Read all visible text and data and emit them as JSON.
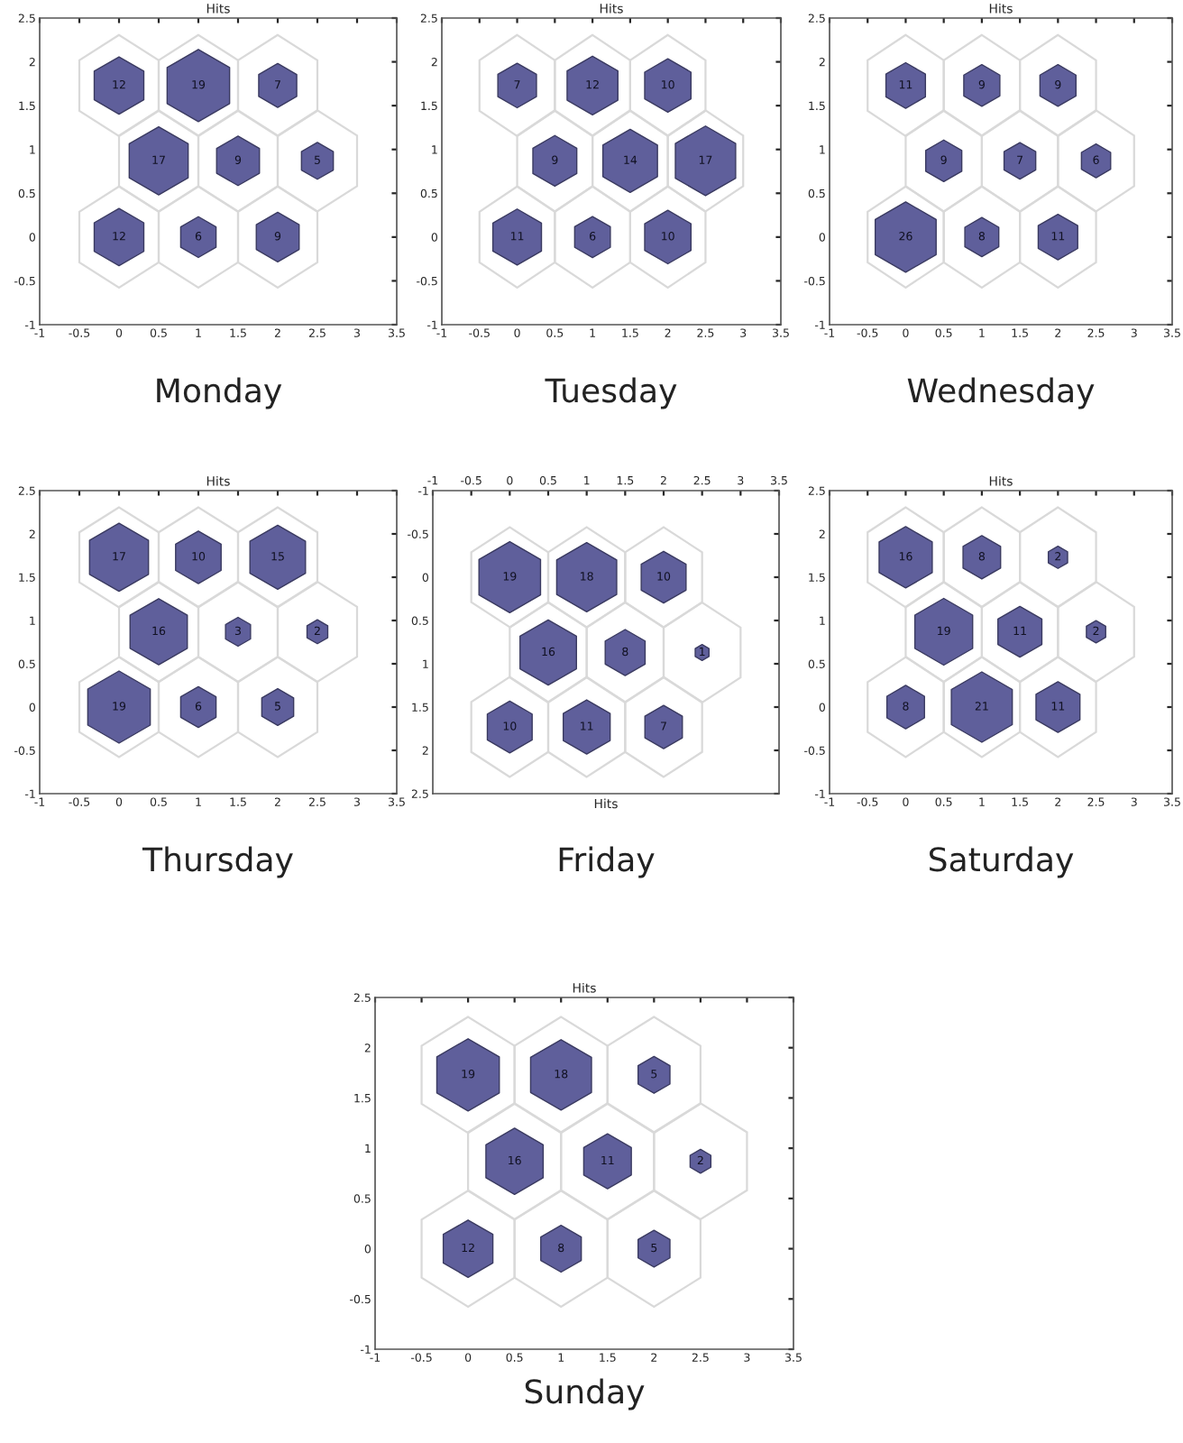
{
  "chart_data": [
    {
      "type": "bubble",
      "title": "Hits",
      "x": [
        0,
        1,
        2,
        0.5,
        1.5,
        2.5,
        0,
        1,
        2
      ],
      "values": [
        1.73,
        1.73,
        1.73,
        0.87,
        0.87,
        0.87,
        0,
        0,
        0
      ],
      "sizes": [
        0.63,
        1,
        0.37,
        0.89,
        0.47,
        0.26,
        0.63,
        0.32,
        0.47
      ],
      "color": "#5f5f9b",
      "xlim": [
        -1,
        3.5
      ],
      "ylim": [
        -1,
        2.5
      ],
      "xticks": [
        -1,
        -0.5,
        0,
        0.5,
        1,
        1.5,
        2,
        2.5,
        3,
        3.5
      ],
      "yticks": [
        -1,
        -0.5,
        0,
        0.5,
        1,
        1.5,
        2,
        2.5
      ],
      "annotations": [
        "Monday",
        {
          "text": "12",
          "x": 0,
          "y": 1.73
        },
        {
          "text": "19",
          "x": 1,
          "y": 1.73
        },
        {
          "text": "7",
          "x": 2,
          "y": 1.73
        },
        {
          "text": "17",
          "x": 0.5,
          "y": 0.87
        },
        {
          "text": "9",
          "x": 1.5,
          "y": 0.87
        },
        {
          "text": "5",
          "x": 2.5,
          "y": 0.87
        },
        {
          "text": "12",
          "x": 0,
          "y": 0
        },
        {
          "text": "6",
          "x": 1,
          "y": 0
        },
        {
          "text": "9",
          "x": 2,
          "y": 0
        }
      ]
    },
    {
      "type": "bubble",
      "title": "Hits",
      "x": [
        0,
        1,
        2,
        0.5,
        1.5,
        2.5,
        0,
        1,
        2
      ],
      "values": [
        1.73,
        1.73,
        1.73,
        0.87,
        0.87,
        0.87,
        0,
        0,
        0
      ],
      "sizes": [
        0.41,
        0.71,
        0.59,
        0.53,
        0.82,
        1,
        0.65,
        0.35,
        0.59
      ],
      "color": "#5f5f9b",
      "xlim": [
        -1,
        3.5
      ],
      "ylim": [
        -1,
        2.5
      ],
      "xticks": [
        -1,
        -0.5,
        0,
        0.5,
        1,
        1.5,
        2,
        2.5,
        3,
        3.5
      ],
      "yticks": [
        -1,
        -0.5,
        0,
        0.5,
        1,
        1.5,
        2,
        2.5
      ],
      "annotations": [
        "Tuesday",
        {
          "text": "7",
          "x": 0,
          "y": 1.73
        },
        {
          "text": "12",
          "x": 1,
          "y": 1.73
        },
        {
          "text": "10",
          "x": 2,
          "y": 1.73
        },
        {
          "text": "9",
          "x": 0.5,
          "y": 0.87
        },
        {
          "text": "14",
          "x": 1.5,
          "y": 0.87
        },
        {
          "text": "17",
          "x": 2.5,
          "y": 0.87
        },
        {
          "text": "11",
          "x": 0,
          "y": 0
        },
        {
          "text": "6",
          "x": 1,
          "y": 0
        },
        {
          "text": "10",
          "x": 2,
          "y": 0
        }
      ]
    },
    {
      "type": "bubble",
      "title": "Hits",
      "x": [
        0,
        1,
        2,
        0.5,
        1.5,
        2.5,
        0,
        1,
        2
      ],
      "values": [
        1.73,
        1.73,
        1.73,
        0.87,
        0.87,
        0.87,
        0,
        0,
        0
      ],
      "sizes": [
        0.42,
        0.35,
        0.35,
        0.35,
        0.27,
        0.23,
        1,
        0.31,
        0.42
      ],
      "color": "#5f5f9b",
      "xlim": [
        -1,
        3.5
      ],
      "ylim": [
        -1,
        2.5
      ],
      "xticks": [
        -1,
        -0.5,
        0,
        0.5,
        1,
        1.5,
        2,
        2.5,
        3,
        3.5
      ],
      "yticks": [
        -1,
        -0.5,
        0,
        0.5,
        1,
        1.5,
        2,
        2.5
      ],
      "annotations": [
        "Wednesday",
        {
          "text": "11",
          "x": 0,
          "y": 1.73
        },
        {
          "text": "9",
          "x": 1,
          "y": 1.73
        },
        {
          "text": "9",
          "x": 2,
          "y": 1.73
        },
        {
          "text": "9",
          "x": 0.5,
          "y": 0.87
        },
        {
          "text": "7",
          "x": 1.5,
          "y": 0.87
        },
        {
          "text": "6",
          "x": 2.5,
          "y": 0.87
        },
        {
          "text": "26",
          "x": 0,
          "y": 0
        },
        {
          "text": "8",
          "x": 1,
          "y": 0
        },
        {
          "text": "11",
          "x": 2,
          "y": 0
        }
      ]
    },
    {
      "type": "bubble",
      "title": "Hits",
      "x": [
        0,
        1,
        2,
        0.5,
        1.5,
        2.5,
        0,
        1,
        2
      ],
      "values": [
        1.73,
        1.73,
        1.73,
        0.87,
        0.87,
        0.87,
        0,
        0,
        0
      ],
      "sizes": [
        0.89,
        0.53,
        0.79,
        0.84,
        0.16,
        0.11,
        1,
        0.32,
        0.26
      ],
      "color": "#5f5f9b",
      "xlim": [
        -1,
        3.5
      ],
      "ylim": [
        -1,
        2.5
      ],
      "xticks": [
        -1,
        -0.5,
        0,
        0.5,
        1,
        1.5,
        2,
        2.5,
        3,
        3.5
      ],
      "yticks": [
        -1,
        -0.5,
        0,
        0.5,
        1,
        1.5,
        2,
        2.5
      ],
      "annotations": [
        "Thursday",
        {
          "text": "17",
          "x": 0,
          "y": 1.73
        },
        {
          "text": "10",
          "x": 1,
          "y": 1.73
        },
        {
          "text": "15",
          "x": 2,
          "y": 1.73
        },
        {
          "text": "16",
          "x": 0.5,
          "y": 0.87
        },
        {
          "text": "3",
          "x": 1.5,
          "y": 0.87
        },
        {
          "text": "2",
          "x": 2.5,
          "y": 0.87
        },
        {
          "text": "19",
          "x": 0,
          "y": 0
        },
        {
          "text": "6",
          "x": 1,
          "y": 0
        },
        {
          "text": "5",
          "x": 2,
          "y": 0
        }
      ]
    },
    {
      "type": "bubble",
      "xlabel": "Hits",
      "x": [
        0,
        1,
        2,
        0.5,
        1.5,
        2.5,
        0,
        1,
        2
      ],
      "values": [
        1.73,
        1.73,
        1.73,
        0.87,
        0.87,
        0.87,
        0,
        0,
        0
      ],
      "sizes": [
        0.53,
        0.58,
        0.37,
        0.84,
        0.42,
        0.05,
        1,
        0.95,
        0.53
      ],
      "color": "#5f5f9b",
      "xlim": [
        -1,
        3.5
      ],
      "ylim": [
        2.5,
        -1
      ],
      "xticks": [
        -1,
        -0.5,
        0,
        0.5,
        1,
        1.5,
        2,
        2.5,
        3,
        3.5
      ],
      "yticks": [
        -1,
        -0.5,
        0,
        0.5,
        1,
        1.5,
        2,
        2.5
      ],
      "annotations": [
        "Friday",
        {
          "text": "10",
          "x": 0,
          "y": 1.73
        },
        {
          "text": "11",
          "x": 1,
          "y": 1.73
        },
        {
          "text": "7",
          "x": 2,
          "y": 1.73
        },
        {
          "text": "16",
          "x": 0.5,
          "y": 0.87
        },
        {
          "text": "8",
          "x": 1.5,
          "y": 0.87
        },
        {
          "text": "1",
          "x": 2.5,
          "y": 0.87
        },
        {
          "text": "19",
          "x": 0,
          "y": 0
        },
        {
          "text": "18",
          "x": 1,
          "y": 0
        },
        {
          "text": "10",
          "x": 2,
          "y": 0
        }
      ]
    },
    {
      "type": "bubble",
      "title": "Hits",
      "x": [
        0,
        1,
        2,
        0.5,
        1.5,
        2.5,
        0,
        1,
        2
      ],
      "values": [
        1.73,
        1.73,
        1.73,
        0.87,
        0.87,
        0.87,
        0,
        0,
        0
      ],
      "sizes": [
        0.76,
        0.38,
        0.1,
        0.9,
        0.52,
        0.1,
        0.38,
        1,
        0.52
      ],
      "color": "#5f5f9b",
      "xlim": [
        -1,
        3.5
      ],
      "ylim": [
        -1,
        2.5
      ],
      "xticks": [
        -1,
        -0.5,
        0,
        0.5,
        1,
        1.5,
        2,
        2.5,
        3,
        3.5
      ],
      "yticks": [
        -1,
        -0.5,
        0,
        0.5,
        1,
        1.5,
        2,
        2.5
      ],
      "annotations": [
        "Saturday",
        {
          "text": "16",
          "x": 0,
          "y": 1.73
        },
        {
          "text": "8",
          "x": 1,
          "y": 1.73
        },
        {
          "text": "2",
          "x": 2,
          "y": 1.73
        },
        {
          "text": "19",
          "x": 0.5,
          "y": 0.87
        },
        {
          "text": "11",
          "x": 1.5,
          "y": 0.87
        },
        {
          "text": "2",
          "x": 2.5,
          "y": 0.87
        },
        {
          "text": "8",
          "x": 0,
          "y": 0
        },
        {
          "text": "21",
          "x": 1,
          "y": 0
        },
        {
          "text": "11",
          "x": 2,
          "y": 0
        }
      ]
    },
    {
      "type": "bubble",
      "title": "Hits",
      "x": [
        0,
        1,
        2,
        0.5,
        1.5,
        2.5,
        0,
        1,
        2
      ],
      "values": [
        1.73,
        1.73,
        1.73,
        0.87,
        0.87,
        0.87,
        0,
        0,
        0
      ],
      "sizes": [
        1,
        0.95,
        0.26,
        0.84,
        0.58,
        0.11,
        0.63,
        0.42,
        0.26
      ],
      "color": "#5f5f9b",
      "xlim": [
        -1,
        3.5
      ],
      "ylim": [
        -1,
        2.5
      ],
      "xticks": [
        -1,
        -0.5,
        0,
        0.5,
        1,
        1.5,
        2,
        2.5,
        3,
        3.5
      ],
      "yticks": [
        -1,
        -0.5,
        0,
        0.5,
        1,
        1.5,
        2,
        2.5
      ],
      "annotations": [
        "Sunday",
        {
          "text": "19",
          "x": 0,
          "y": 1.73
        },
        {
          "text": "18",
          "x": 1,
          "y": 1.73
        },
        {
          "text": "5",
          "x": 2,
          "y": 1.73
        },
        {
          "text": "16",
          "x": 0.5,
          "y": 0.87
        },
        {
          "text": "11",
          "x": 1.5,
          "y": 0.87
        },
        {
          "text": "2",
          "x": 2.5,
          "y": 0.87
        },
        {
          "text": "12",
          "x": 0,
          "y": 0
        },
        {
          "text": "8",
          "x": 1,
          "y": 0
        },
        {
          "text": "5",
          "x": 2,
          "y": 0
        }
      ]
    }
  ]
}
